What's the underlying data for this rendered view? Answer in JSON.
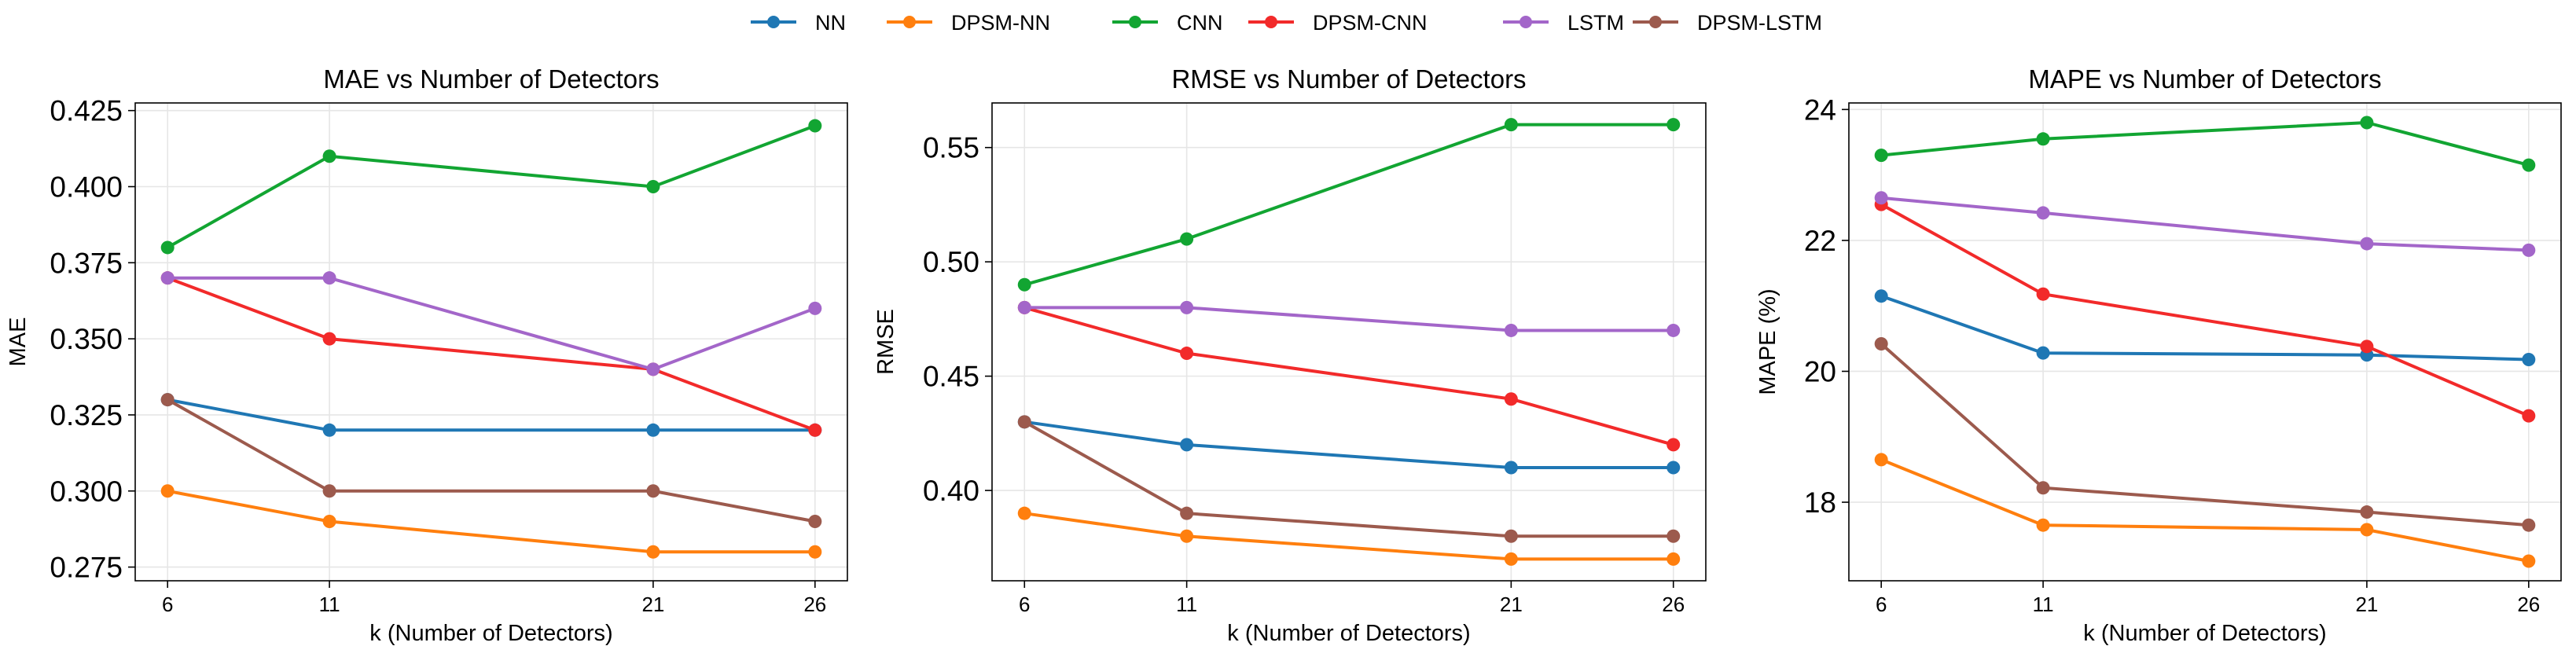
{
  "legend": {
    "entries": [
      {
        "name": "NN",
        "color": "#1f77b4"
      },
      {
        "name": "DPSM-NN",
        "color": "#ff7f0e"
      },
      {
        "name": "CNN",
        "color": "#12a532"
      },
      {
        "name": "DPSM-CNN",
        "color": "#f22a2a"
      },
      {
        "name": "LSTM",
        "color": "#a366c9"
      },
      {
        "name": "DPSM-LSTM",
        "color": "#9c5a4d"
      }
    ]
  },
  "chart_data": [
    {
      "type": "line",
      "title": "MAE vs Number of Detectors",
      "xlabel": "k (Number of Detectors)",
      "ylabel": "MAE",
      "x": [
        6,
        11,
        21,
        26
      ],
      "xticks": [
        "6",
        "11",
        "21",
        "26"
      ],
      "ylim": [
        0.2705,
        0.4275
      ],
      "yticks": [
        0.275,
        0.3,
        0.325,
        0.35,
        0.375,
        0.4,
        0.425
      ],
      "ytick_labels": [
        "0.275",
        "0.300",
        "0.325",
        "0.350",
        "0.375",
        "0.400",
        "0.425"
      ],
      "grid": true,
      "series": [
        {
          "name": "NN",
          "values": [
            0.33,
            0.32,
            0.32,
            0.32
          ]
        },
        {
          "name": "DPSM-NN",
          "values": [
            0.3,
            0.29,
            0.28,
            0.28
          ]
        },
        {
          "name": "CNN",
          "values": [
            0.38,
            0.41,
            0.4,
            0.42
          ]
        },
        {
          "name": "DPSM-CNN",
          "values": [
            0.37,
            0.35,
            0.34,
            0.32
          ]
        },
        {
          "name": "LSTM",
          "values": [
            0.37,
            0.37,
            0.34,
            0.36
          ]
        },
        {
          "name": "DPSM-LSTM",
          "values": [
            0.33,
            0.3,
            0.3,
            0.29
          ]
        }
      ]
    },
    {
      "type": "line",
      "title": "RMSE vs Number of Detectors",
      "xlabel": "k (Number of Detectors)",
      "ylabel": "RMSE",
      "x": [
        6,
        11,
        21,
        26
      ],
      "xticks": [
        "6",
        "11",
        "21",
        "26"
      ],
      "ylim": [
        0.3605,
        0.5695
      ],
      "yticks": [
        0.4,
        0.45,
        0.5,
        0.55
      ],
      "ytick_labels": [
        "0.40",
        "0.45",
        "0.50",
        "0.55"
      ],
      "grid": true,
      "series": [
        {
          "name": "NN",
          "values": [
            0.43,
            0.42,
            0.41,
            0.41
          ]
        },
        {
          "name": "DPSM-NN",
          "values": [
            0.39,
            0.38,
            0.37,
            0.37
          ]
        },
        {
          "name": "CNN",
          "values": [
            0.49,
            0.51,
            0.56,
            0.56
          ]
        },
        {
          "name": "DPSM-CNN",
          "values": [
            0.48,
            0.46,
            0.44,
            0.42
          ]
        },
        {
          "name": "LSTM",
          "values": [
            0.48,
            0.48,
            0.47,
            0.47
          ]
        },
        {
          "name": "DPSM-LSTM",
          "values": [
            0.43,
            0.39,
            0.38,
            0.38
          ]
        }
      ]
    },
    {
      "type": "line",
      "title": "MAPE vs Number of Detectors",
      "xlabel": "k (Number of Detectors)",
      "ylabel": "MAPE (%)",
      "x": [
        6,
        11,
        21,
        26
      ],
      "xticks": [
        "6",
        "11",
        "21",
        "26"
      ],
      "ylim": [
        16.8,
        24.1
      ],
      "yticks": [
        18,
        20,
        22,
        24
      ],
      "ytick_labels": [
        "18",
        "20",
        "22",
        "24"
      ],
      "grid": true,
      "series": [
        {
          "name": "NN",
          "values": [
            21.15,
            20.28,
            20.25,
            20.18
          ]
        },
        {
          "name": "DPSM-NN",
          "values": [
            18.65,
            17.65,
            17.58,
            17.1
          ]
        },
        {
          "name": "CNN",
          "values": [
            23.3,
            23.55,
            23.8,
            23.15
          ]
        },
        {
          "name": "DPSM-CNN",
          "values": [
            22.55,
            21.18,
            20.38,
            19.32
          ]
        },
        {
          "name": "LSTM",
          "values": [
            22.65,
            22.42,
            21.95,
            21.85
          ]
        },
        {
          "name": "DPSM-LSTM",
          "values": [
            20.42,
            18.22,
            17.85,
            17.65
          ]
        }
      ]
    }
  ]
}
